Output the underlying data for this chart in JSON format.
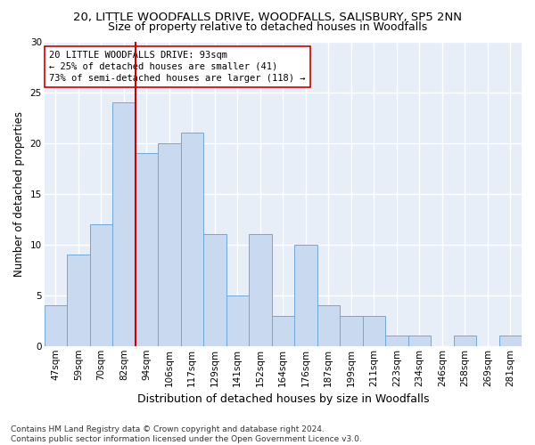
{
  "title_line1": "20, LITTLE WOODFALLS DRIVE, WOODFALLS, SALISBURY, SP5 2NN",
  "title_line2": "Size of property relative to detached houses in Woodfalls",
  "xlabel": "Distribution of detached houses by size in Woodfalls",
  "ylabel": "Number of detached properties",
  "footnote": "Contains HM Land Registry data © Crown copyright and database right 2024.\nContains public sector information licensed under the Open Government Licence v3.0.",
  "bin_labels": [
    "47sqm",
    "59sqm",
    "70sqm",
    "82sqm",
    "94sqm",
    "106sqm",
    "117sqm",
    "129sqm",
    "141sqm",
    "152sqm",
    "164sqm",
    "176sqm",
    "187sqm",
    "199sqm",
    "211sqm",
    "223sqm",
    "234sqm",
    "246sqm",
    "258sqm",
    "269sqm",
    "281sqm"
  ],
  "bar_values": [
    4,
    9,
    12,
    24,
    19,
    20,
    21,
    11,
    5,
    11,
    3,
    10,
    4,
    3,
    3,
    1,
    1,
    0,
    1,
    0,
    1
  ],
  "bar_color": "#c9d9f0",
  "bar_edge_color": "#6fa8d6",
  "highlight_line_color": "#cc0000",
  "highlight_bin_index": 4,
  "annotation_text": "20 LITTLE WOODFALLS DRIVE: 93sqm\n← 25% of detached houses are smaller (41)\n73% of semi-detached houses are larger (118) →",
  "annotation_box_color": "#ffffff",
  "annotation_box_edge": "#cc0000",
  "ylim": [
    0,
    30
  ],
  "yticks": [
    0,
    5,
    10,
    15,
    20,
    25,
    30
  ],
  "bg_color": "#e8eef8",
  "grid_color": "#ffffff",
  "title_fontsize": 9.5,
  "subtitle_fontsize": 9,
  "xlabel_fontsize": 9,
  "ylabel_fontsize": 8.5,
  "tick_fontsize": 7.5,
  "annot_fontsize": 7.5,
  "footnote_fontsize": 6.5
}
